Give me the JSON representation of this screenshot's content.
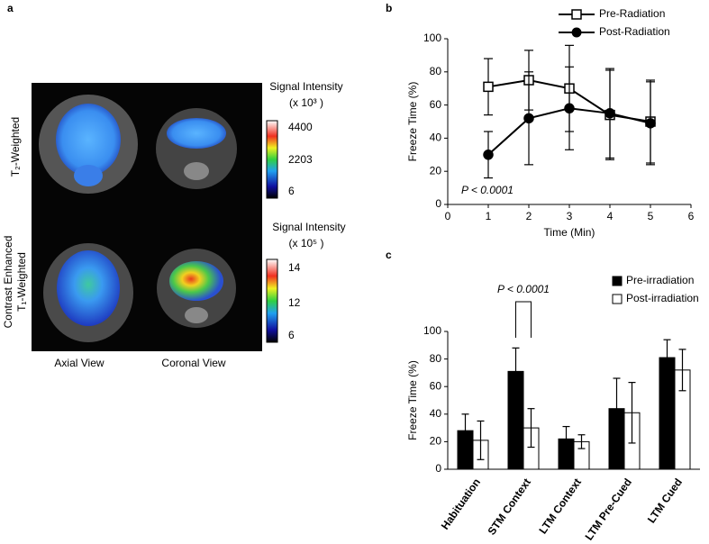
{
  "figure": {
    "panel_label": "a",
    "row_labels": [
      "T₂-Weighted",
      "Contrast Enhanced",
      "T₁-Weighted"
    ],
    "column_labels": [
      "Axial  View",
      "Coronal View"
    ],
    "colorbars": [
      {
        "title": "Signal Intensity",
        "unit": "(x 10³ )",
        "ticks": [
          "4400",
          "2203",
          "6"
        ]
      },
      {
        "title": "Signal Intensity",
        "unit": "(x 10⁵ )",
        "ticks": [
          "14",
          "12",
          "6"
        ]
      }
    ]
  },
  "chart_data": [
    {
      "type": "line",
      "panel_label": "b",
      "x": [
        1,
        2,
        3,
        4,
        5
      ],
      "xlim": [
        0,
        6
      ],
      "xticks": [
        0,
        1,
        2,
        3,
        4,
        5,
        6
      ],
      "ylim": [
        0,
        100
      ],
      "yticks": [
        0,
        20,
        40,
        60,
        80,
        100
      ],
      "x_label": "Time (Min)",
      "y_label": "Freeze Time (%)",
      "annotation": "P < 0.0001",
      "series": [
        {
          "name": "Pre-Radiation",
          "color": "#ffffff",
          "marker": "square",
          "values": [
            71,
            75,
            70,
            54,
            50
          ],
          "errors": [
            17,
            18,
            26,
            27,
            25
          ]
        },
        {
          "name": "Post-Radiation",
          "color": "#000000",
          "marker": "circle",
          "values": [
            30,
            52,
            58,
            55,
            49
          ],
          "errors": [
            14,
            28,
            25,
            27,
            25
          ]
        }
      ]
    },
    {
      "type": "bar",
      "panel_label": "c",
      "categories": [
        "Habituation",
        "STM Context",
        "LTM Context",
        "LTM Pre-Cued",
        "LTM Cued"
      ],
      "ylim": [
        0,
        100
      ],
      "yticks": [
        0,
        20,
        40,
        60,
        80,
        100
      ],
      "y_label": "Freeze Time (%)",
      "annotation": "P < 0.0001",
      "series": [
        {
          "name": "Pre-irradiation",
          "color": "#000000",
          "values": [
            28,
            71,
            22,
            44,
            81
          ],
          "errors": [
            12,
            17,
            9,
            22,
            13
          ]
        },
        {
          "name": "Post-irradiation",
          "color": "#ffffff",
          "values": [
            21,
            30,
            20,
            41,
            72
          ],
          "errors": [
            14,
            14,
            5,
            22,
            15
          ]
        }
      ]
    }
  ]
}
